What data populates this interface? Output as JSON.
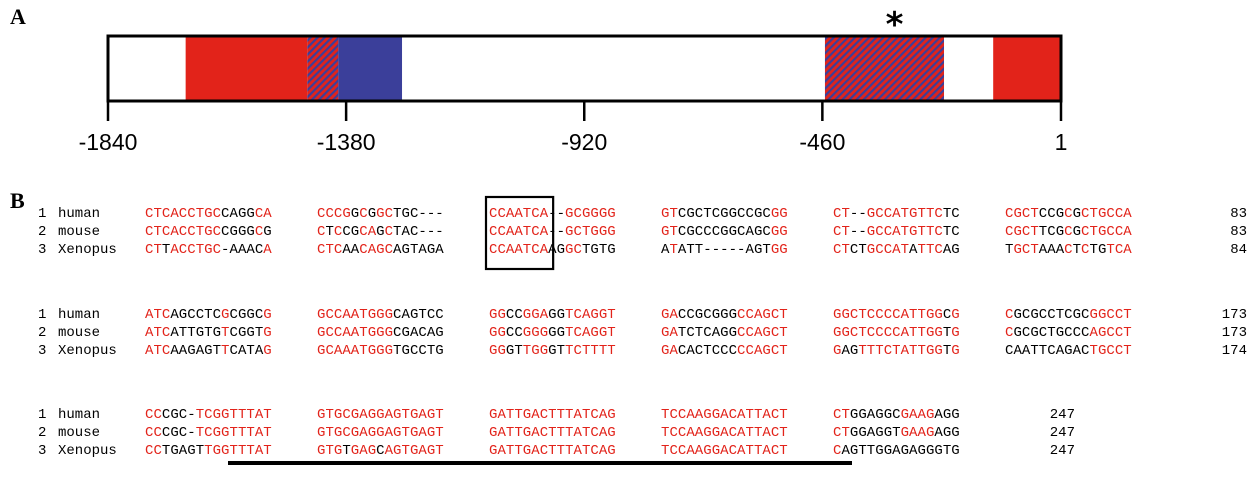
{
  "panel_a": {
    "label": "A",
    "axis": {
      "min": -1840,
      "max": 1,
      "ticks": [
        -1840,
        -1380,
        -920,
        -460,
        1
      ],
      "tick_labels": [
        "-1840",
        "-1380",
        "-920",
        "-460",
        "1"
      ]
    },
    "segments": [
      {
        "start": -1690,
        "end": -1455,
        "kind": "red"
      },
      {
        "start": -1455,
        "end": -1395,
        "kind": "hatched"
      },
      {
        "start": -1395,
        "end": -1272,
        "kind": "blue"
      },
      {
        "start": -455,
        "end": -225,
        "kind": "hatched"
      },
      {
        "start": -130,
        "end": 1,
        "kind": "red"
      }
    ],
    "asterisk": {
      "text": "*",
      "position": -340
    },
    "colors": {
      "red": "#e2231a",
      "blue": "#3b3f9a",
      "hatch_line": "#3b3f9a"
    }
  },
  "panel_b": {
    "label": "B",
    "colors": {
      "match": "#e2231a",
      "mismatch": "#000000"
    },
    "blocks": [
      {
        "rows": [
          {
            "index": "1",
            "species": "human",
            "groups": [
              "CTCACCTGCCAGGCA",
              "CCCGGCGGCTGC---",
              "CCAATCA--GCGGGG",
              "GTCGCTCGGCCGCGG",
              "CT--GCCATGTTCTC",
              "CGCTCCGCGCTGCCA"
            ],
            "end": "83",
            "red": [
              "RRRRRRRRRBBBBRR",
              "RRRRBRBRRBBB---",
              "RRRRRRR--RRRRRR",
              "RRBBBBBBBBBBBRR",
              "RR--RRRRRRRRRBB",
              "RRRRBBBRBRRRRRR"
            ]
          },
          {
            "index": "2",
            "species": "mouse",
            "groups": [
              "CTCACCTGCCGGGCG",
              "CTCCGCAGCTAC---",
              "CCAATCA--GCTGGG",
              "GTCGCCCGGCAGCGG",
              "CT--GCCATGTTCTC",
              "CGCTTCGCGCTGCCA"
            ],
            "end": "83",
            "red": [
              "RRRRRRRRRBBBBRB",
              "RBRBBRRBRBBB---",
              "RRRRRRR--RRRRRR",
              "RRBBBBBBBBBBBRR",
              "RR--RRRRRRRRRBB",
              "RRRRBBBRBRRRRRR"
            ]
          },
          {
            "index": "3",
            "species": "Xenopus",
            "groups": [
              "CTTACCTGC-AAACA",
              "CTCAACAGCAGTAGA",
              "CCAATCAAGGCTGTG",
              "ATATT-----AGTGG",
              "CTCTGCCATATTCAG",
              "TGCTAAACTCTGTCA"
            ],
            "end": "84",
            "red": [
              "RRBRRRRRR-BBBBR",
              "RRRBBRRRRBBBBBB",
              "RRRRRRRBBRRBBBB",
              "BRBBB-----BBBRR",
              "RRBBRRRRRBRRRBB",
              "BRRRBBBRBRBBRRR"
            ]
          }
        ]
      },
      {
        "rows": [
          {
            "index": "1",
            "species": "human",
            "groups": [
              "ATCAGCCTCGCGGCG",
              "GCCAATGGGCAGTCC",
              "GGCCGGAGGTCAGGT",
              "GACCGCGGGCCAGCT",
              "GGCTCCCCATTGGCG",
              "CGCGCCTCGCGGCCT"
            ],
            "end": "173",
            "red": [
              "RRRBBBBBBRBBBBR",
              "RRRRRRRRRBBBBBB",
              "RRBBRRRBBRRRRRR",
              "RRBBBBBBBRRRRRR",
              "RRRRRRRRRRRRRBR",
              "RBBBBBBBBBRRRRR"
            ]
          },
          {
            "index": "2",
            "species": "mouse",
            "groups": [
              "ATCATTGTGTCGGTG",
              "GCCAATGGGCGACAG",
              "GGCCGGGGGTCAGGT",
              "GATCTCAGGCCAGCT",
              "GGCTCCCCATTGGTG",
              "CGCGCTGCCCAGCCT"
            ],
            "end": "173",
            "red": [
              "RRRBBBBBBRBBBBR",
              "RRRRRRRRRBBBBBB",
              "RRBBRRRBBRRRRRR",
              "RRBBBBBBBRRRRRR",
              "RRRRRRRRRRRRRBR",
              "RBBBBBBBBBRRRRR"
            ]
          },
          {
            "index": "3",
            "species": "Xenopus",
            "groups": [
              "ATCAAGAGTTCATAG",
              "GCAAATGGGTGCCTG",
              "GGGTTGGGTTCTTTT",
              "GACACTCCCCCAGCT",
              "GAGTTTCTATTGGTG",
              "CAATTCAGACTGCCT"
            ],
            "end": "174",
            "red": [
              "RRRBBBBBBRBBBBR",
              "RRRRRRRRRBBBBBB",
              "RRBBRRRBBRRRRRR",
              "RRBBBBBBBRRRRRR",
              "RBBRRRRRRRRRRBR",
              "BBBBBBBBBBRRRRR"
            ]
          }
        ]
      },
      {
        "rows": [
          {
            "index": "1",
            "species": "human",
            "groups": [
              "CCCGC-TCGGTTTAT",
              "GTGCGAGGAGTGAGT",
              "GATTGACTTTATCAG",
              "TCCAAGGACATTACT",
              "CTGGAGGCGAAGAGG"
            ],
            "end": "247",
            "red": [
              "RRBBB-RRRRRRRRR",
              "RRRRRRRRRRRRRRR",
              "RRRRRRRRRRRRRRR",
              "RRRRRRRRRRRRRRR",
              "RRBBBBBBRRRRBBB"
            ]
          },
          {
            "index": "2",
            "species": "mouse",
            "groups": [
              "CCCGC-TCGGTTTAT",
              "GTGCGAGGAGTGAGT",
              "GATTGACTTTATCAG",
              "TCCAAGGACATTACT",
              "CTGGAGGTGAAGAGG"
            ],
            "end": "247",
            "red": [
              "RRBBB-RRRRRRRRR",
              "RRRRRRRRRRRRRRR",
              "RRRRRRRRRRRRRRR",
              "RRRRRRRRRRRRRRR",
              "RRBBBBBBRRRRBBB"
            ]
          },
          {
            "index": "3",
            "species": "Xenopus",
            "groups": [
              "CCTGAGTTGGTTTAT",
              "GTGTGAGCAGTGAGT",
              "GATTGACTTTATCAG",
              "TCCAAGGACATTACT",
              "CAGTTGGAGAGGGTG"
            ],
            "end": "247",
            "red": [
              "RRBBBBBRRRRRRRR",
              "RRRBRRRBRRRRRRR",
              "RRRRRRRRRRRRRRR",
              "RRRRRRRRRRRRRRR",
              "RBBBBBBBBBBBBBB"
            ]
          }
        ]
      }
    ]
  }
}
